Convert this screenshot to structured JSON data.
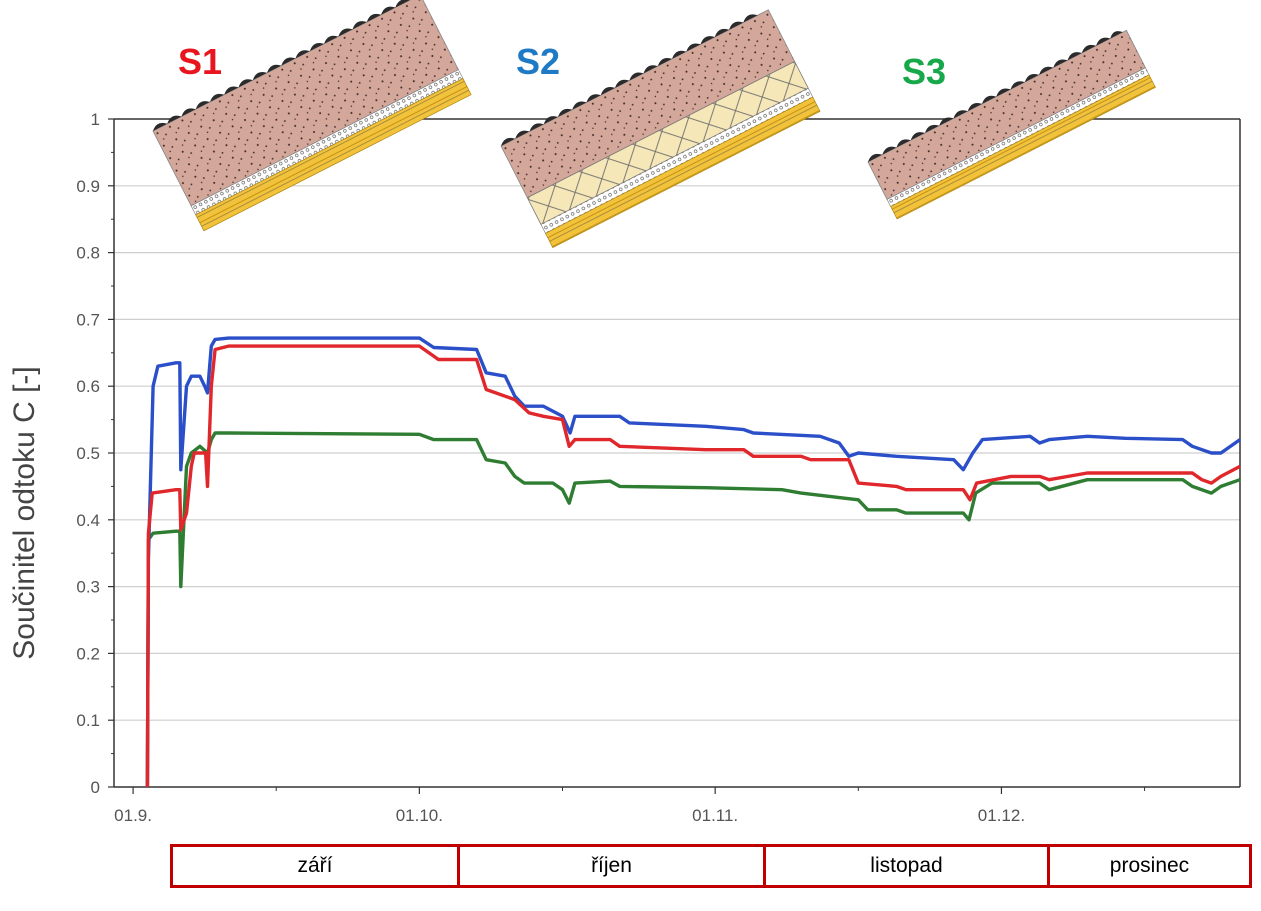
{
  "chart_data": {
    "type": "line",
    "xlabel": "",
    "ylabel": "Součinitel odtoku C [-]",
    "ylim": [
      0,
      1
    ],
    "yticks": [
      "0",
      "0.1",
      "0.2",
      "0.3",
      "0.4",
      "0.5",
      "0.6",
      "0.7",
      "0.8",
      "0.9",
      "1"
    ],
    "xticks": [
      "01.9.",
      "01.10.",
      "01.11.",
      "01.12."
    ],
    "x_range_days": [
      -2,
      116
    ],
    "x_unit": "days from 01.9.",
    "grid": "horizontal",
    "series": [
      {
        "name": "S1",
        "color": "#e0282c",
        "points": [
          [
            1.5,
            0.0
          ],
          [
            1.6,
            0.38
          ],
          [
            2.0,
            0.44
          ],
          [
            4.5,
            0.445
          ],
          [
            4.9,
            0.445
          ],
          [
            5.0,
            0.385
          ],
          [
            5.6,
            0.41
          ],
          [
            6.1,
            0.48
          ],
          [
            6.4,
            0.5
          ],
          [
            7.0,
            0.5
          ],
          [
            7.6,
            0.5
          ],
          [
            7.8,
            0.45
          ],
          [
            8.2,
            0.6
          ],
          [
            8.6,
            0.655
          ],
          [
            10,
            0.66
          ],
          [
            30,
            0.66
          ],
          [
            31.5,
            0.645
          ],
          [
            32,
            0.64
          ],
          [
            36,
            0.64
          ],
          [
            37,
            0.595
          ],
          [
            40,
            0.58
          ],
          [
            41.5,
            0.56
          ],
          [
            43,
            0.555
          ],
          [
            45,
            0.55
          ],
          [
            45.7,
            0.51
          ],
          [
            46.3,
            0.52
          ],
          [
            50,
            0.52
          ],
          [
            51,
            0.51
          ],
          [
            60,
            0.505
          ],
          [
            64,
            0.505
          ],
          [
            65,
            0.495
          ],
          [
            70,
            0.495
          ],
          [
            71,
            0.49
          ],
          [
            75,
            0.49
          ],
          [
            76,
            0.455
          ],
          [
            80,
            0.45
          ],
          [
            81,
            0.445
          ],
          [
            87,
            0.445
          ],
          [
            87.7,
            0.43
          ],
          [
            88.4,
            0.455
          ],
          [
            92,
            0.465
          ],
          [
            95,
            0.465
          ],
          [
            96,
            0.46
          ],
          [
            100,
            0.47
          ],
          [
            104,
            0.47
          ],
          [
            111,
            0.47
          ],
          [
            112,
            0.46
          ],
          [
            113,
            0.455
          ],
          [
            114,
            0.465
          ],
          [
            116,
            0.48
          ]
        ]
      },
      {
        "name": "S2",
        "color": "#2a4fc8",
        "points": [
          [
            1.5,
            0.0
          ],
          [
            1.6,
            0.34
          ],
          [
            2.1,
            0.6
          ],
          [
            2.6,
            0.63
          ],
          [
            4.5,
            0.635
          ],
          [
            4.9,
            0.635
          ],
          [
            5.0,
            0.475
          ],
          [
            5.6,
            0.6
          ],
          [
            6.1,
            0.615
          ],
          [
            7.0,
            0.615
          ],
          [
            7.5,
            0.6
          ],
          [
            7.8,
            0.59
          ],
          [
            8.2,
            0.66
          ],
          [
            8.6,
            0.67
          ],
          [
            10,
            0.672
          ],
          [
            30,
            0.672
          ],
          [
            31.5,
            0.658
          ],
          [
            36,
            0.655
          ],
          [
            37,
            0.62
          ],
          [
            39,
            0.615
          ],
          [
            40,
            0.585
          ],
          [
            41,
            0.57
          ],
          [
            43,
            0.57
          ],
          [
            45,
            0.555
          ],
          [
            45.8,
            0.53
          ],
          [
            46.3,
            0.555
          ],
          [
            51,
            0.555
          ],
          [
            52,
            0.545
          ],
          [
            60,
            0.54
          ],
          [
            64,
            0.535
          ],
          [
            65,
            0.53
          ],
          [
            72,
            0.525
          ],
          [
            74,
            0.515
          ],
          [
            75,
            0.495
          ],
          [
            76,
            0.5
          ],
          [
            80,
            0.495
          ],
          [
            86,
            0.49
          ],
          [
            87,
            0.475
          ],
          [
            88,
            0.5
          ],
          [
            89,
            0.52
          ],
          [
            94,
            0.525
          ],
          [
            95,
            0.515
          ],
          [
            96,
            0.52
          ],
          [
            100,
            0.525
          ],
          [
            104,
            0.522
          ],
          [
            110,
            0.52
          ],
          [
            111,
            0.51
          ],
          [
            113,
            0.5
          ],
          [
            114,
            0.5
          ],
          [
            116,
            0.52
          ]
        ]
      },
      {
        "name": "S3",
        "color": "#2e7d32",
        "points": [
          [
            1.5,
            0.0
          ],
          [
            1.6,
            0.37
          ],
          [
            2.1,
            0.38
          ],
          [
            4.5,
            0.383
          ],
          [
            4.9,
            0.383
          ],
          [
            5.0,
            0.3
          ],
          [
            5.6,
            0.48
          ],
          [
            6.1,
            0.5
          ],
          [
            7.0,
            0.51
          ],
          [
            7.8,
            0.5
          ],
          [
            8.2,
            0.52
          ],
          [
            8.6,
            0.53
          ],
          [
            10,
            0.53
          ],
          [
            30,
            0.528
          ],
          [
            31.5,
            0.52
          ],
          [
            36,
            0.52
          ],
          [
            37,
            0.49
          ],
          [
            39,
            0.485
          ],
          [
            40,
            0.465
          ],
          [
            41,
            0.455
          ],
          [
            44,
            0.455
          ],
          [
            45,
            0.445
          ],
          [
            45.7,
            0.425
          ],
          [
            46.3,
            0.455
          ],
          [
            50,
            0.458
          ],
          [
            51,
            0.45
          ],
          [
            60,
            0.448
          ],
          [
            68,
            0.445
          ],
          [
            70,
            0.44
          ],
          [
            76,
            0.43
          ],
          [
            77,
            0.415
          ],
          [
            80,
            0.415
          ],
          [
            81,
            0.41
          ],
          [
            87,
            0.41
          ],
          [
            87.6,
            0.4
          ],
          [
            88.3,
            0.44
          ],
          [
            90,
            0.455
          ],
          [
            95,
            0.455
          ],
          [
            96,
            0.445
          ],
          [
            100,
            0.46
          ],
          [
            110,
            0.46
          ],
          [
            111,
            0.45
          ],
          [
            113,
            0.44
          ],
          [
            114,
            0.45
          ],
          [
            116,
            0.46
          ]
        ]
      }
    ]
  },
  "series_labels": [
    {
      "text": "S1",
      "color": "#e8151f"
    },
    {
      "text": "S2",
      "color": "#1f7ac6"
    },
    {
      "text": "S3",
      "color": "#17a84a"
    }
  ],
  "months": [
    "září",
    "říjen",
    "listopad",
    "prosinec"
  ]
}
